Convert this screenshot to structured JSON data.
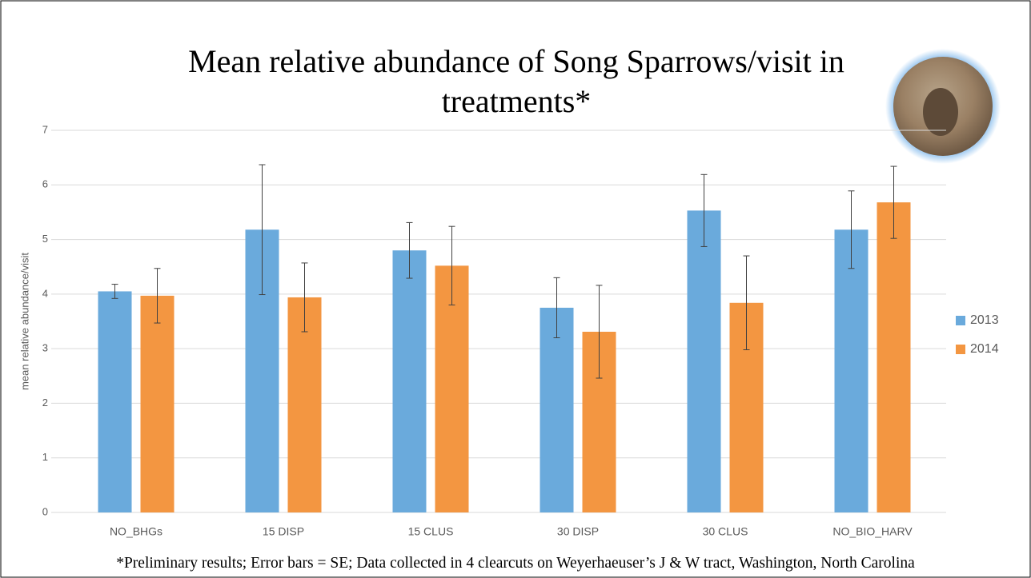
{
  "chart_data": {
    "type": "bar",
    "title": "Mean relative abundance of Song Sparrows/visit in treatments*",
    "y_label": "mean relative abundance/visit",
    "footnote": "*Preliminary results; Error bars = SE; Data collected in 4 clearcuts on Weyerhaeuser’s J & W tract, Washington, North Carolina",
    "categories": [
      "NO_BHGs",
      "15 DISP",
      "15 CLUS",
      "30 DISP",
      "30 CLUS",
      "NO_BIO_HARV"
    ],
    "series": [
      {
        "name": "2013",
        "color": "#6aaadc",
        "values": [
          4.05,
          5.18,
          4.8,
          3.75,
          5.53,
          5.18
        ],
        "errors": [
          0.13,
          1.19,
          0.51,
          0.55,
          0.66,
          0.71
        ]
      },
      {
        "name": "2014",
        "color": "#f39641",
        "values": [
          3.97,
          3.94,
          4.52,
          3.31,
          3.84,
          5.68
        ],
        "errors": [
          0.5,
          0.63,
          0.72,
          0.85,
          0.86,
          0.66
        ]
      }
    ],
    "ylim": [
      0,
      7
    ],
    "yticks": [
      0,
      1,
      2,
      3,
      4,
      5,
      6,
      7
    ],
    "grid": true,
    "legend": "right"
  }
}
